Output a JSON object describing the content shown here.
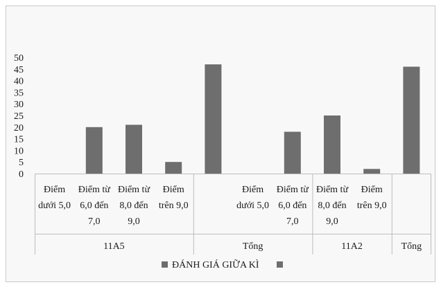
{
  "chart_data": {
    "type": "bar",
    "ylim": [
      0,
      50
    ],
    "yticks": [
      "0",
      "5",
      "10",
      "15",
      "20",
      "25",
      "30",
      "35",
      "40",
      "45",
      "50"
    ],
    "categories": [
      [
        "Điểm",
        "dưới 5,0"
      ],
      [
        "Điểm từ",
        "6,0 đến",
        "7,0"
      ],
      [
        "Điểm từ",
        "8,0 đến",
        "9,0"
      ],
      [
        "Điểm",
        "trên 9,0"
      ],
      [
        ""
      ],
      [
        "Điểm",
        "dưới 5,0"
      ],
      [
        "Điểm từ",
        "6,0 đến",
        "7,0"
      ],
      [
        "Điểm từ",
        "8,0 đến",
        "9,0"
      ],
      [
        "Điểm",
        "trên 9,0"
      ],
      [
        ""
      ]
    ],
    "groups": [
      {
        "label": "11A5",
        "span": 4
      },
      {
        "label": "Tổng",
        "span": 3
      },
      {
        "label": "11A2",
        "span": 2
      },
      {
        "label": "Tổng",
        "span": 1
      }
    ],
    "series": [
      {
        "name": "ĐÁNH GIÁ GIỮA KÌ",
        "values": [
          0,
          20,
          21,
          5,
          47,
          0,
          18,
          25,
          2,
          46
        ],
        "color": "#6e6e6e"
      }
    ],
    "legend": {
      "position": "bottom",
      "extra_marker": true
    },
    "grid": false
  }
}
